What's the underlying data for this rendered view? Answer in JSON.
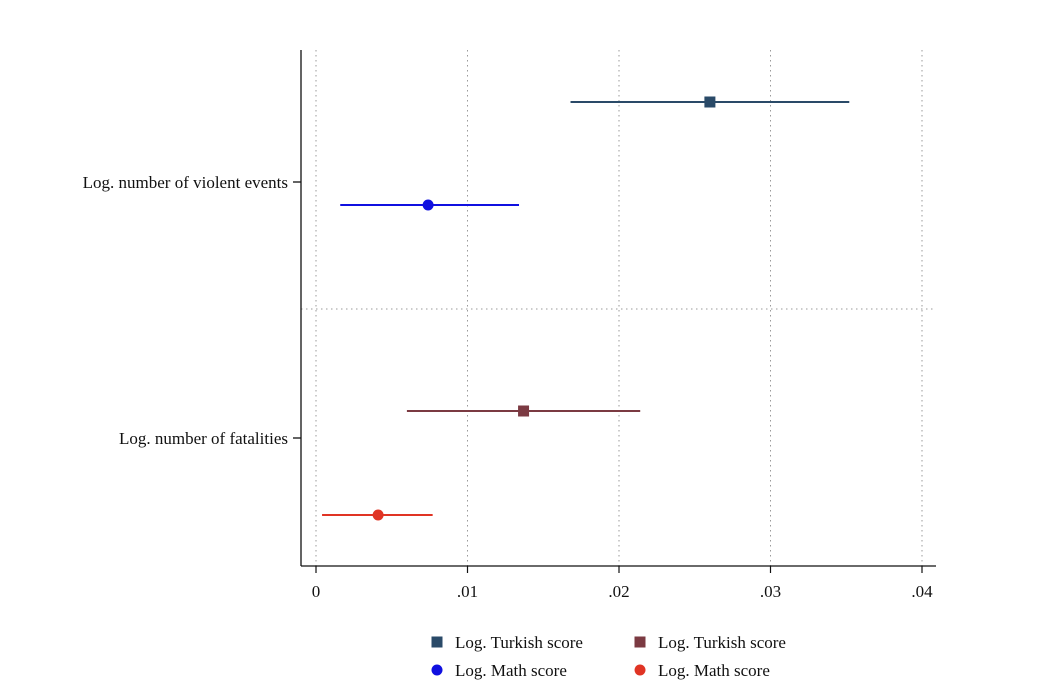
{
  "chart_data": {
    "type": "scatter",
    "subtype": "coefficient-plot",
    "xlim": [
      0,
      0.04
    ],
    "x_ticks": [
      0,
      0.01,
      0.02,
      0.03,
      0.04
    ],
    "x_tick_labels": [
      "0",
      ".01",
      ".02",
      ".03",
      ".04"
    ],
    "grid": "vertical dotted",
    "categories": [
      "Log. number of violent events",
      "Log. number of fatalities"
    ],
    "series": [
      {
        "name": "Log. Turkish score",
        "category": "Log. number of violent events",
        "marker": "square",
        "color": "#2a4a68",
        "estimate": 0.026,
        "ci": [
          0.0168,
          0.0352
        ]
      },
      {
        "name": "Log. Math score",
        "category": "Log. number of violent events",
        "marker": "circle",
        "color": "#1010e0",
        "estimate": 0.0074,
        "ci": [
          0.0016,
          0.0134
        ]
      },
      {
        "name": "Log. Turkish score",
        "category": "Log. number of fatalities",
        "marker": "square",
        "color": "#7b3a42",
        "estimate": 0.0137,
        "ci": [
          0.006,
          0.0214
        ]
      },
      {
        "name": "Log. Math score",
        "category": "Log. number of fatalities",
        "marker": "circle",
        "color": "#e03424",
        "estimate": 0.0041,
        "ci": [
          0.0004,
          0.0077
        ]
      }
    ],
    "legend": {
      "placement": "bottom",
      "columns": 2,
      "entries": [
        {
          "label": "Log. Turkish score",
          "marker": "square",
          "color": "#2a4a68"
        },
        {
          "label": "Log. Turkish score",
          "marker": "square",
          "color": "#7b3a42"
        },
        {
          "label": "Log. Math score",
          "marker": "circle",
          "color": "#1010e0"
        },
        {
          "label": "Log. Math score",
          "marker": "circle",
          "color": "#e03424"
        }
      ]
    }
  }
}
